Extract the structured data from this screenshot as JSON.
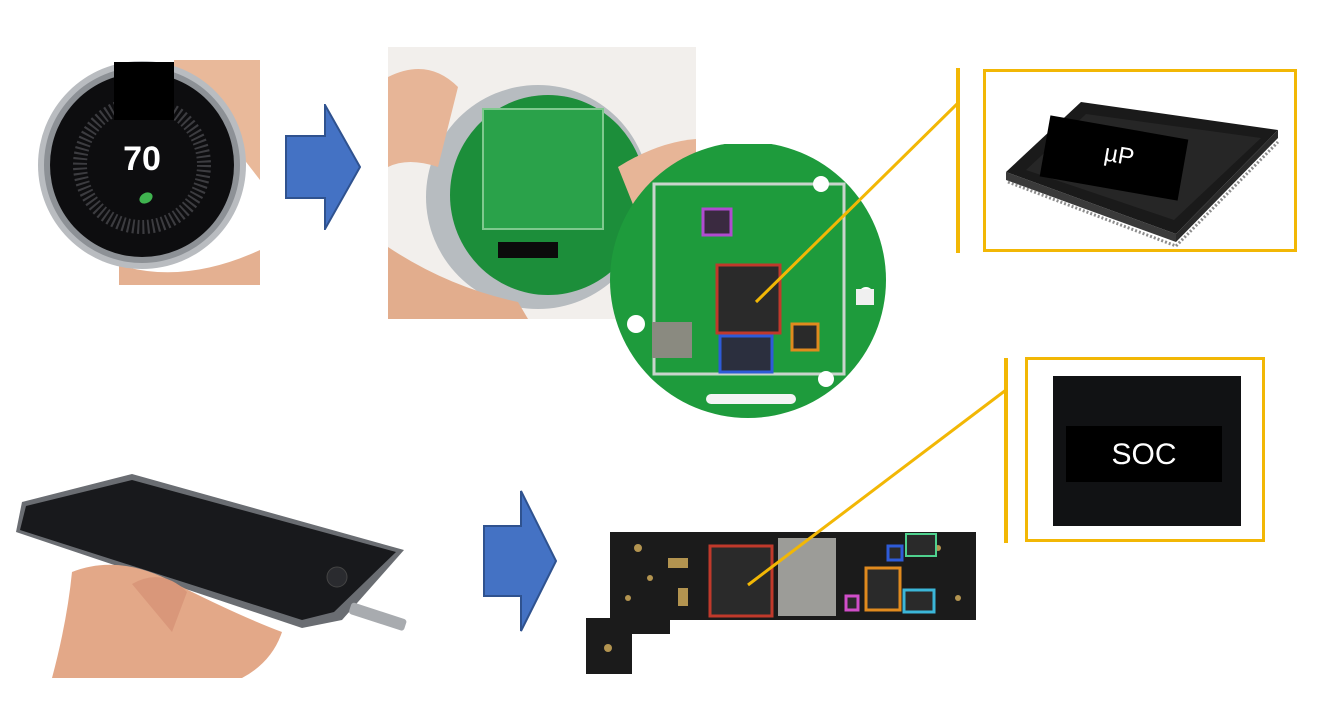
{
  "thermostat": {
    "reading": "70"
  },
  "chips": {
    "microprocessor_label": "µP",
    "soc_label": "SOC"
  },
  "colors": {
    "arrow": "#4472c4",
    "arrow_edge": "#2f528f",
    "callout": "#f2b705",
    "pcb_green": "#1e9b3c",
    "chip_outline_red": "#c0392b",
    "chip_outline_blue": "#2e5bd8",
    "chip_outline_orange": "#e08a1e",
    "chip_outline_cyan": "#3bb6d8",
    "chip_outline_purple": "#b04bd0"
  }
}
